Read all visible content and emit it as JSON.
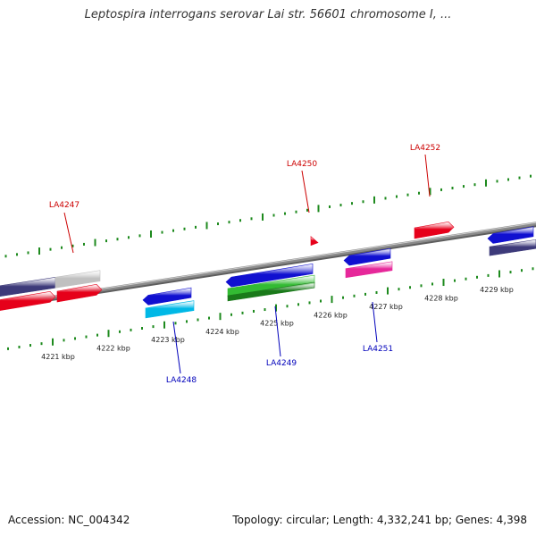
{
  "title": "Leptospira interrogans serovar Lai str. 56601 chromosome I, ...",
  "footer": {
    "accession": "Accession: NC_004342",
    "summary": "Topology: circular; Length: 4,332,241 bp; Genes: 4,398"
  },
  "colors": {
    "forward_label": "#cc0000",
    "reverse_label": "#0000bb",
    "tick": "#1d8a1d",
    "backbone": "#8a8a8a"
  },
  "scale": {
    "unit": "kbp"
  },
  "ticks": [
    {
      "label": "4221 kbp"
    },
    {
      "label": "4222 kbp"
    },
    {
      "label": "4223 kbp"
    },
    {
      "label": "4224 kbp"
    },
    {
      "label": "4225 kbp"
    },
    {
      "label": "4226 kbp"
    },
    {
      "label": "4227 kbp"
    },
    {
      "label": "4228 kbp"
    },
    {
      "label": "4229 kbp"
    }
  ],
  "gene_labels": [
    {
      "name": "LA4247",
      "strand": "forward"
    },
    {
      "name": "LA4250",
      "strand": "forward"
    },
    {
      "name": "LA4252",
      "strand": "forward"
    },
    {
      "name": "LA4248",
      "strand": "reverse"
    },
    {
      "name": "LA4249",
      "strand": "reverse"
    },
    {
      "name": "LA4251",
      "strand": "reverse"
    }
  ],
  "features": [
    {
      "name": "gene-block-1",
      "strand": "forward",
      "color": "#3d3a7a",
      "shape": "box"
    },
    {
      "name": "gene-block-2",
      "strand": "forward",
      "color": "#c0c0c0",
      "shape": "box"
    },
    {
      "name": "gene-block-3",
      "strand": "forward",
      "color": "#e6001a",
      "shape": "arrow"
    },
    {
      "name": "gene-block-4",
      "strand": "forward",
      "color": "#e6001a",
      "shape": "arrow"
    },
    {
      "name": "gene-block-5",
      "strand": "forward",
      "color": "#e6001a",
      "shape": "marker"
    },
    {
      "name": "gene-block-6",
      "strand": "forward",
      "color": "#e6001a",
      "shape": "arrow"
    },
    {
      "name": "gene-block-7",
      "strand": "reverse",
      "color": "#1010d0",
      "shape": "arrow"
    },
    {
      "name": "gene-block-8",
      "strand": "reverse",
      "color": "#00b8e6",
      "shape": "box"
    },
    {
      "name": "gene-block-9",
      "strand": "reverse",
      "color": "#1010d0",
      "shape": "arrow"
    },
    {
      "name": "gene-block-10",
      "strand": "reverse",
      "color": "#33bb33",
      "shape": "box"
    },
    {
      "name": "gene-block-11",
      "strand": "reverse",
      "color": "#1a7a1a",
      "shape": "box"
    },
    {
      "name": "gene-block-12",
      "strand": "reverse",
      "color": "#1010d0",
      "shape": "arrow"
    },
    {
      "name": "gene-block-13",
      "strand": "reverse",
      "color": "#e6289a",
      "shape": "box"
    },
    {
      "name": "gene-block-14",
      "strand": "reverse",
      "color": "#1010d0",
      "shape": "arrow"
    },
    {
      "name": "gene-block-15",
      "strand": "reverse",
      "color": "#3d3a7a",
      "shape": "box"
    }
  ]
}
